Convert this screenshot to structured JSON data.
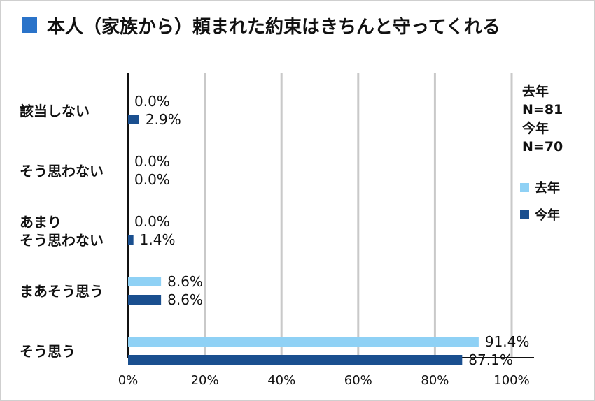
{
  "title": "本人（家族から）頼まれた約束はきちんと守ってくれる",
  "colors": {
    "title_square": "#2a73c9",
    "prev": "#8fd1f5",
    "curr": "#1a4f8f",
    "grid": "#c9c9c9"
  },
  "sample_note": {
    "prev_label": "去年",
    "prev_n": "N=81",
    "curr_label": "今年",
    "curr_n": "N=70"
  },
  "chart_data": {
    "type": "bar",
    "orientation": "horizontal",
    "categories": [
      [
        "該当しない"
      ],
      [
        "そう思わない"
      ],
      [
        "あまり",
        "そう思わない"
      ],
      [
        "まあそう思う"
      ],
      [
        "そう思う"
      ]
    ],
    "series": [
      {
        "name": "去年",
        "values": [
          0.0,
          0.0,
          0.0,
          8.6,
          91.4
        ],
        "labels": [
          "0.0%",
          "0.0%",
          "0.0%",
          "8.6%",
          "91.4%"
        ]
      },
      {
        "name": "今年",
        "values": [
          2.9,
          0.0,
          1.4,
          8.6,
          87.1
        ],
        "labels": [
          "2.9%",
          "0.0%",
          "1.4%",
          "8.6%",
          "87.1%"
        ]
      }
    ],
    "xlim": [
      0,
      100
    ],
    "xticks": [
      0,
      20,
      40,
      60,
      80,
      100
    ],
    "xtick_labels": [
      "0%",
      "20%",
      "40%",
      "60%",
      "80%",
      "100%"
    ],
    "grid": true,
    "legend_position": "right"
  }
}
